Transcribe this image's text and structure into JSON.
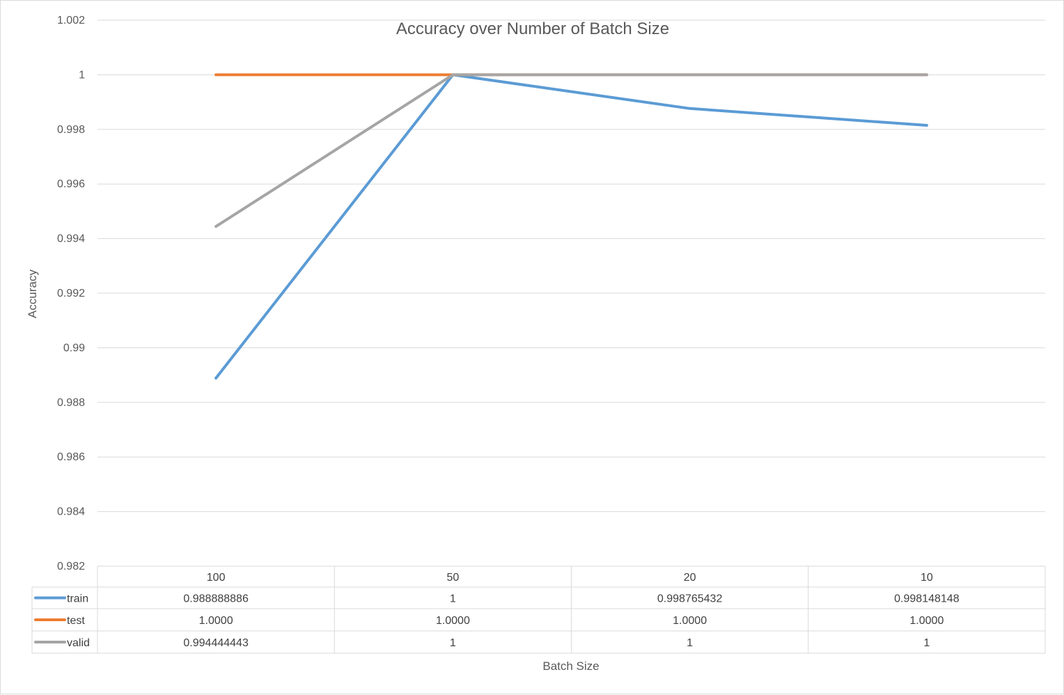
{
  "chart_data": {
    "type": "line",
    "title": "Accuracy over Number of Batch Size",
    "xlabel": "Batch Size",
    "ylabel": "Accuracy",
    "ylim": [
      0.982,
      1.002
    ],
    "ytick_step": 0.002,
    "ytick_labels": [
      "0.982",
      "0.984",
      "0.986",
      "0.988",
      "0.99",
      "0.992",
      "0.994",
      "0.996",
      "0.998",
      "1",
      "1.002"
    ],
    "categories": [
      "100",
      "50",
      "20",
      "10"
    ],
    "grid": true,
    "legend": "data-table-below",
    "series": [
      {
        "name": "train",
        "color": "#5b9bd5",
        "values": [
          0.988888886,
          1,
          0.998765432,
          0.998148148
        ],
        "table_labels": [
          "0.988888886",
          "1",
          "0.998765432",
          "0.998148148"
        ]
      },
      {
        "name": "test",
        "color": "#ed7d31",
        "values": [
          1.0,
          1.0,
          1.0,
          1.0
        ],
        "table_labels": [
          "1.0000",
          "1.0000",
          "1.0000",
          "1.0000"
        ]
      },
      {
        "name": "valid",
        "color": "#a5a5a5",
        "values": [
          0.994444443,
          1,
          1,
          1
        ],
        "table_labels": [
          "0.994444443",
          "1",
          "1",
          "1"
        ]
      }
    ]
  }
}
